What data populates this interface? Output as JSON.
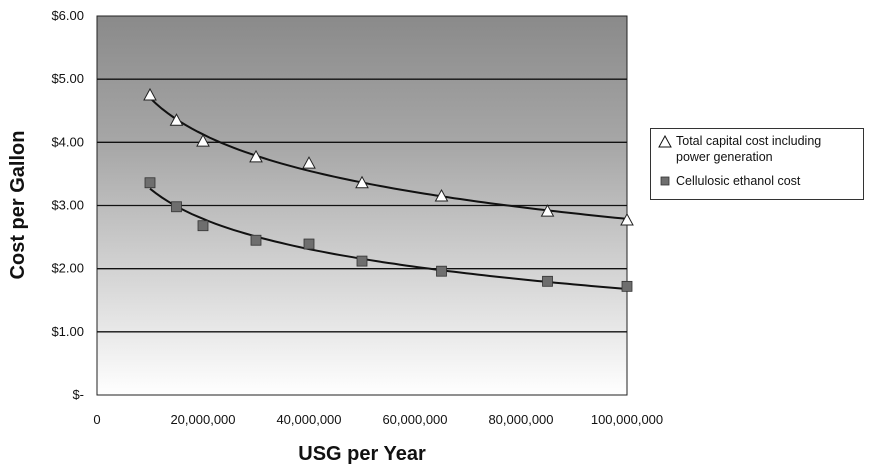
{
  "chart_data": {
    "type": "scatter",
    "title": "",
    "xlabel": "USG per Year",
    "ylabel": "Cost per Gallon",
    "xlim": [
      0,
      100000000
    ],
    "ylim": [
      0,
      6
    ],
    "x_ticks": [
      0,
      20000000,
      40000000,
      60000000,
      80000000,
      100000000
    ],
    "x_tick_labels": [
      "0",
      "20,000,000",
      "40,000,000",
      "60,000,000",
      "80,000,000",
      "100,000,000"
    ],
    "y_ticks": [
      0,
      1,
      2,
      3,
      4,
      5,
      6
    ],
    "y_tick_labels": [
      "$-",
      "$1.00",
      "$2.00",
      "$3.00",
      "$4.00",
      "$5.00",
      "$6.00"
    ],
    "grid": "horizontal",
    "background": "vertical gradient, dark gray at top to white at bottom",
    "legend_position": "right",
    "series": [
      {
        "name": "Total capital cost including power generation",
        "marker": "open-triangle",
        "trendline": true,
        "x": [
          10000000,
          15000000,
          20000000,
          30000000,
          40000000,
          50000000,
          65000000,
          85000000,
          100000000
        ],
        "y": [
          4.75,
          4.35,
          4.02,
          3.77,
          3.67,
          3.36,
          3.15,
          2.91,
          2.77
        ]
      },
      {
        "name": "Cellulosic ethanol cost",
        "marker": "filled-square",
        "trendline": true,
        "x": [
          10000000,
          15000000,
          20000000,
          30000000,
          40000000,
          50000000,
          65000000,
          85000000,
          100000000
        ],
        "y": [
          3.36,
          2.98,
          2.68,
          2.45,
          2.39,
          2.12,
          1.96,
          1.8,
          1.72
        ]
      }
    ]
  },
  "colors": {
    "plot_top": "#8a8a8a",
    "plot_bottom": "#ffffff",
    "square_marker": "#6e6e6e",
    "line": "#111111"
  }
}
